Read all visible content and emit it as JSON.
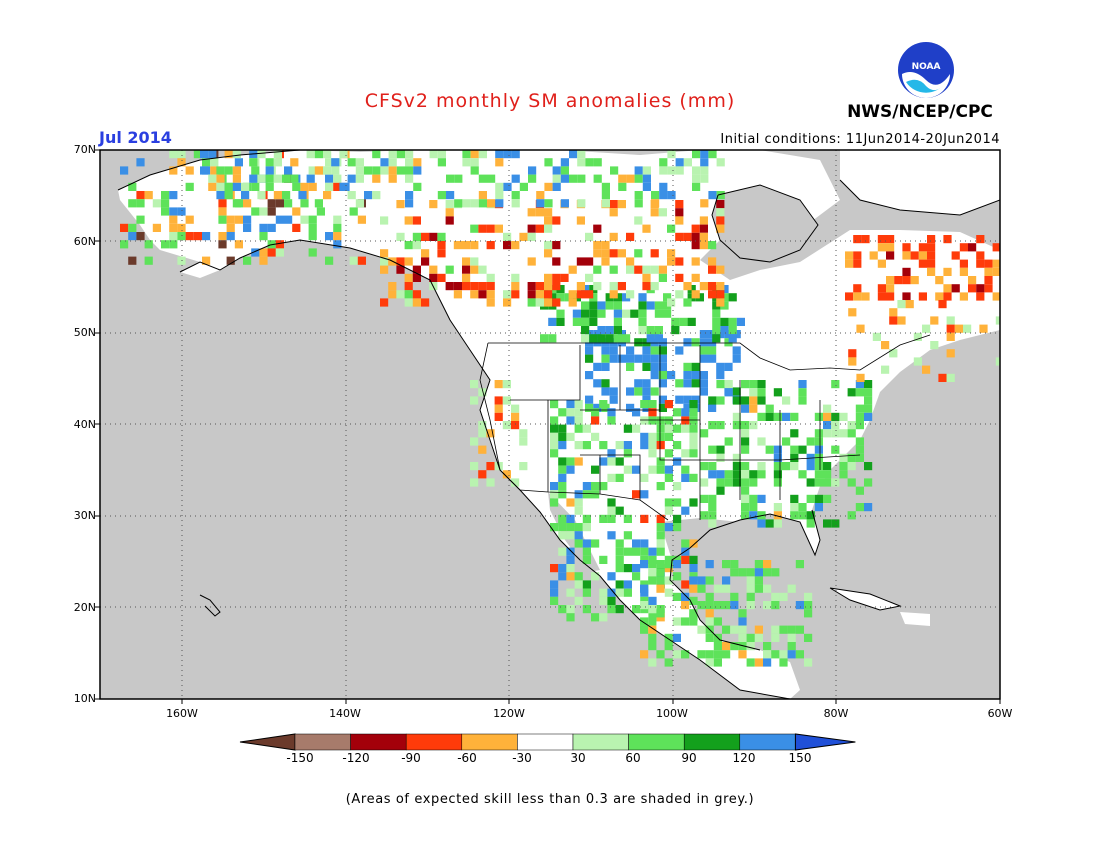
{
  "header": {
    "title": "CFSv2 monthly SM anomalies (mm)",
    "org": "NWS/NCEP/CPC",
    "month": "Jul 2014",
    "initial_conditions": "Initial conditions: 11Jun2014-20Jun2014",
    "logo_text": "NOAA"
  },
  "axes": {
    "lat_labels": [
      "70N",
      "60N",
      "50N",
      "40N",
      "30N",
      "20N",
      "10N"
    ],
    "lon_labels": [
      "160W",
      "140W",
      "120W",
      "100W",
      "80W",
      "60W"
    ]
  },
  "colorbar": {
    "labels": [
      "-150",
      "-120",
      "-90",
      "-60",
      "-30",
      "30",
      "60",
      "90",
      "120",
      "150"
    ],
    "colors": [
      "#6b3a2b",
      "#a77b6b",
      "#a3000a",
      "#ff3b0a",
      "#ffb23a",
      "#ffffff",
      "#b9f3b0",
      "#5ee25a",
      "#13a01c",
      "#3a8fe6",
      "#2050d8"
    ]
  },
  "note": "(Areas of expected skill less than 0.3 are shaded in grey.)",
  "map_colors": {
    "grey": "#c8c8c8",
    "white": "#ffffff",
    "lightgreen": "#b9f3b0",
    "green": "#5ee25a",
    "darkgreen": "#13a01c",
    "blue": "#3a8fe6",
    "orange": "#ffb23a",
    "red": "#ff3b0a",
    "darkred": "#a3000a",
    "brown": "#6b3a2b"
  }
}
